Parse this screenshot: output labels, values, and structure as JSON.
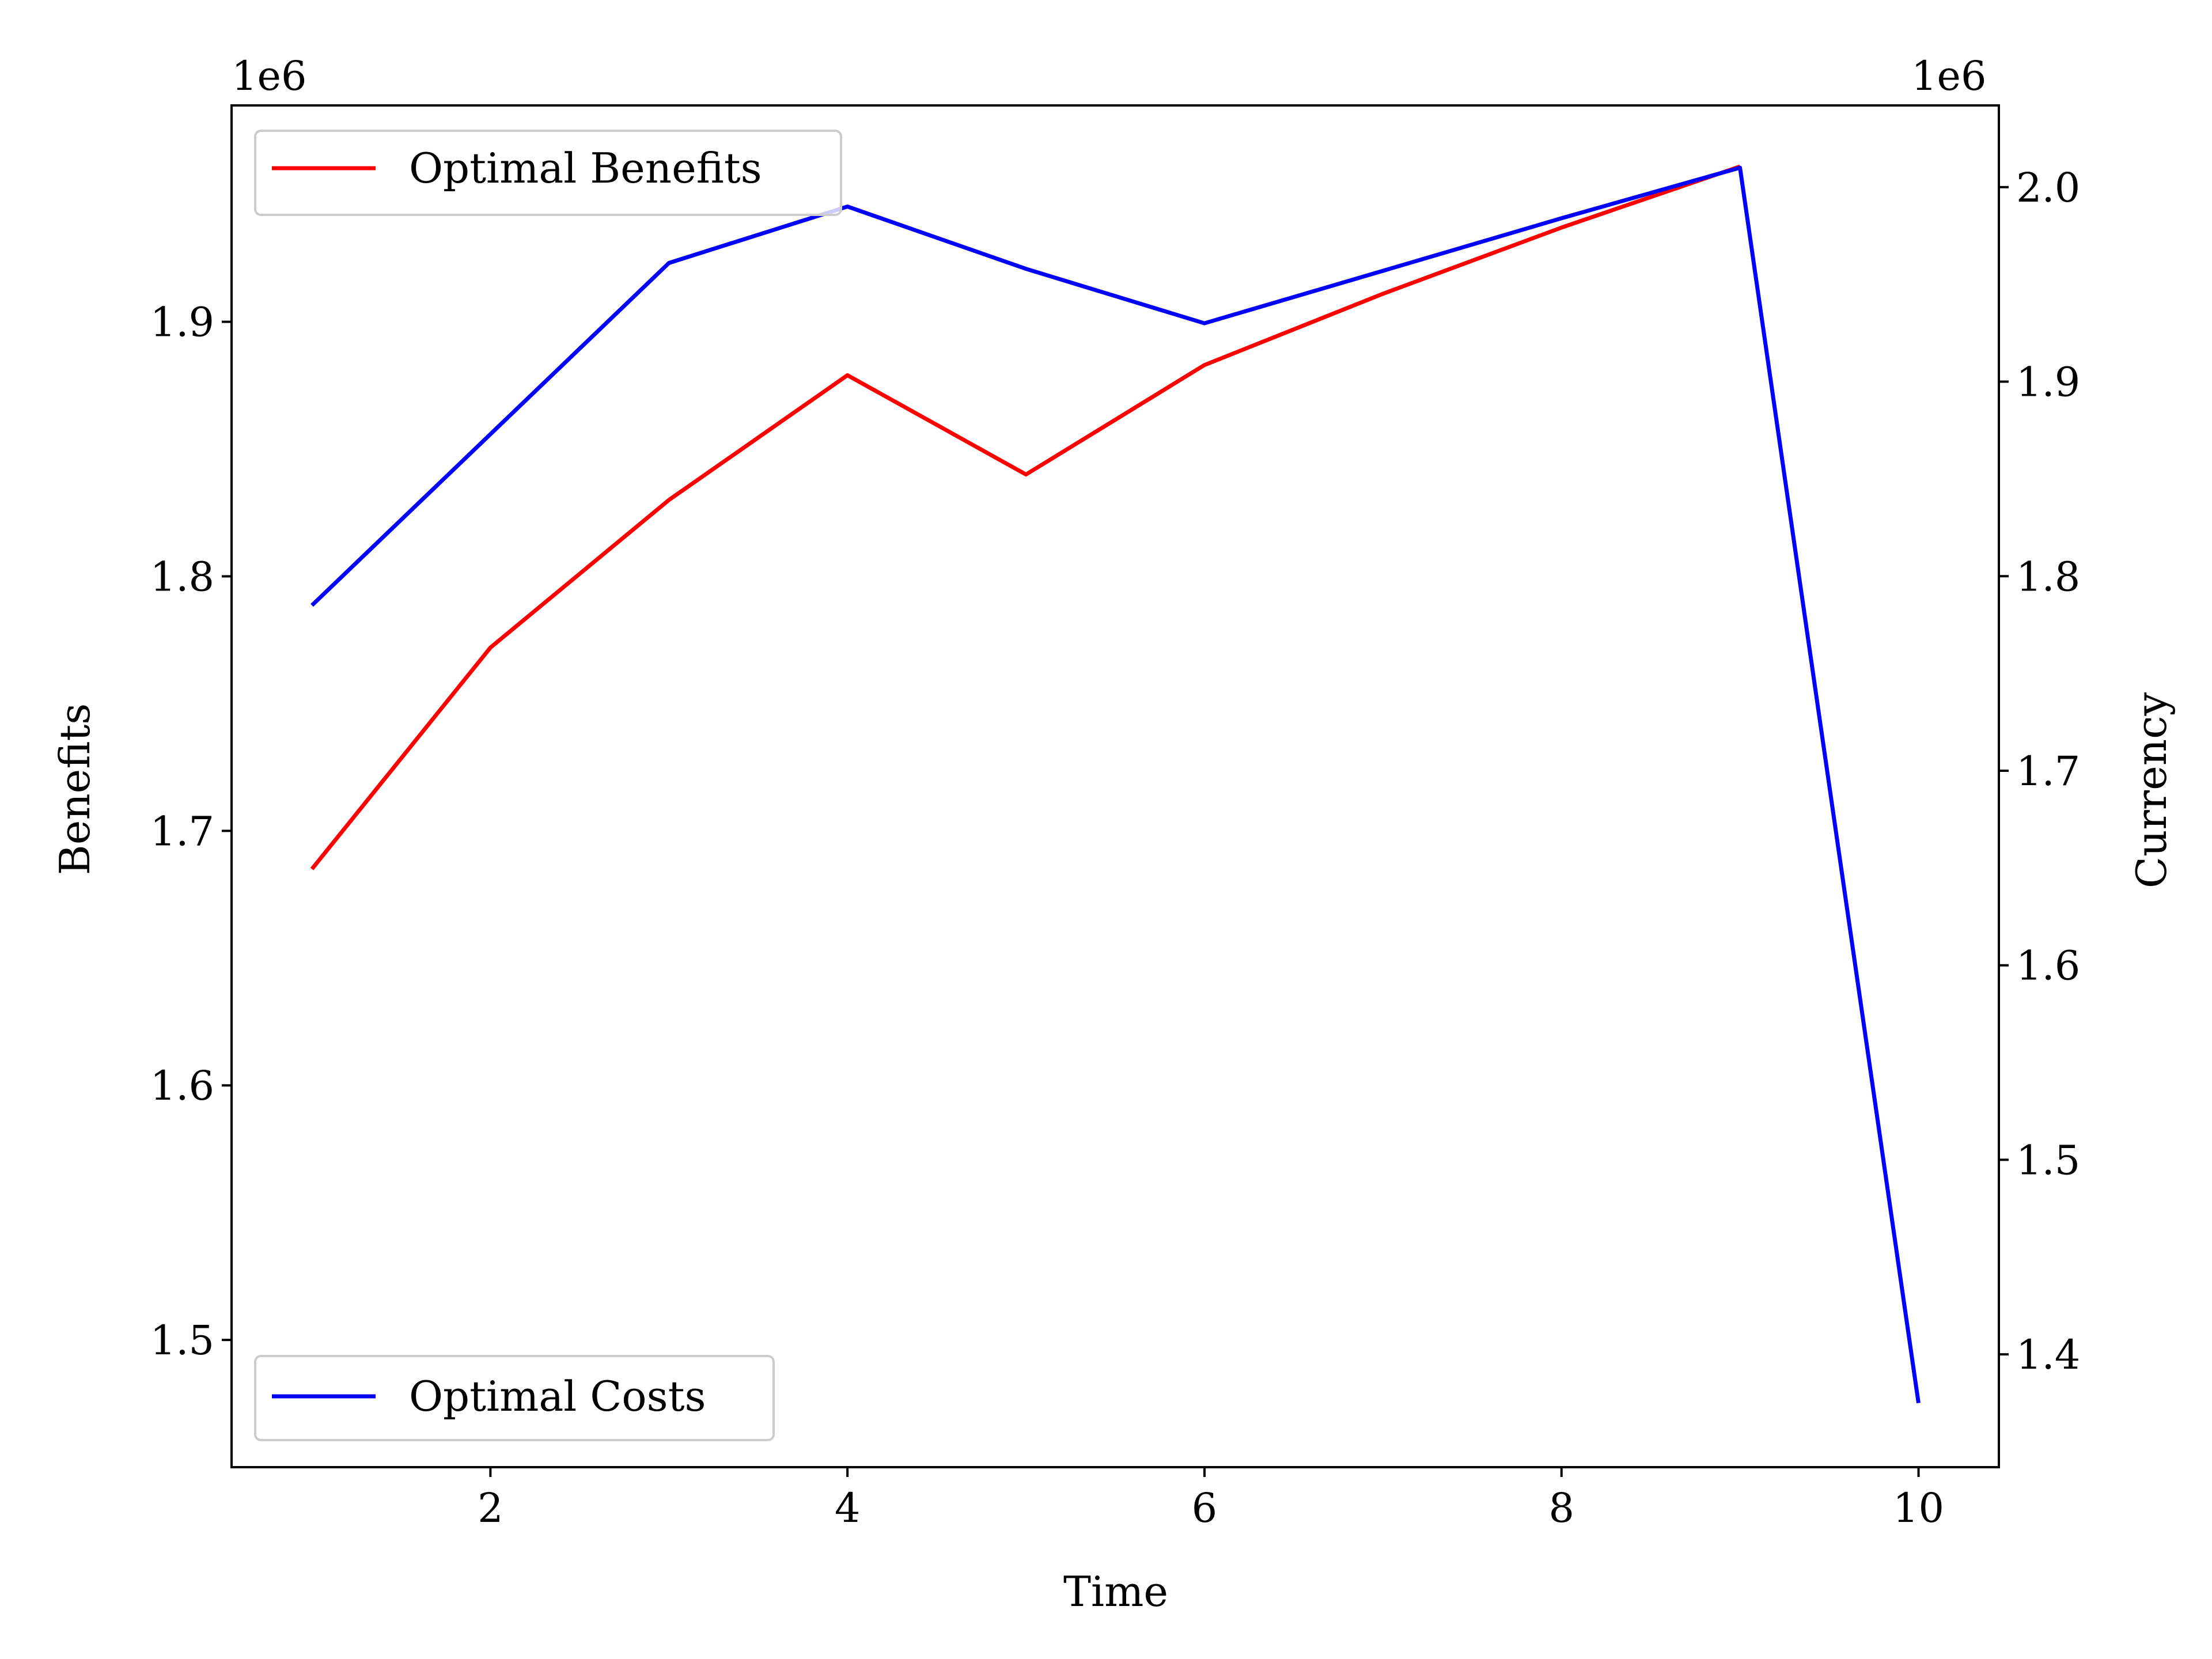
{
  "chart_data": {
    "type": "line",
    "x": [
      1,
      2,
      3,
      4,
      5,
      6,
      7,
      8,
      9,
      10
    ],
    "xlabel": "Time",
    "xlim": [
      0.55,
      10.45
    ],
    "xticks": [
      2,
      4,
      6,
      8,
      10
    ],
    "xtick_labels": [
      "2",
      "4",
      "6",
      "8",
      "10"
    ],
    "left_axis": {
      "label": "Benefits",
      "offset_text": "1e6",
      "ylim": [
        1.45,
        1.985
      ],
      "ticks": [
        1.5,
        1.6,
        1.7,
        1.8,
        1.9
      ],
      "tick_labels": [
        "1.5",
        "1.6",
        "1.7",
        "1.8",
        "1.9"
      ]
    },
    "right_axis": {
      "label": "Currency",
      "offset_text": "1e6",
      "ylim": [
        1.342,
        2.042
      ],
      "ticks": [
        1.4,
        1.5,
        1.6,
        1.7,
        1.8,
        1.9,
        2.0
      ],
      "tick_labels": [
        "1.4",
        "1.5",
        "1.6",
        "1.7",
        "1.8",
        "1.9",
        "2.0"
      ]
    },
    "series": [
      {
        "name": "Optimal Benefits",
        "axis": "left",
        "color": "#ff0000",
        "values": [
          1.685,
          1.772,
          1.83,
          1.879,
          1.84,
          1.883,
          1.911,
          1.937,
          1.961,
          null
        ]
      },
      {
        "name": "Optimal Costs",
        "axis": "right",
        "color": "#0000ff",
        "values": [
          1.785,
          1.873,
          1.961,
          1.99,
          1.958,
          1.93,
          1.957,
          1.984,
          2.01,
          1.375
        ]
      }
    ],
    "legends": [
      {
        "series": "Optimal Benefits",
        "placement": "upper-left"
      },
      {
        "series": "Optimal Costs",
        "placement": "lower-left"
      }
    ],
    "grid": false
  }
}
